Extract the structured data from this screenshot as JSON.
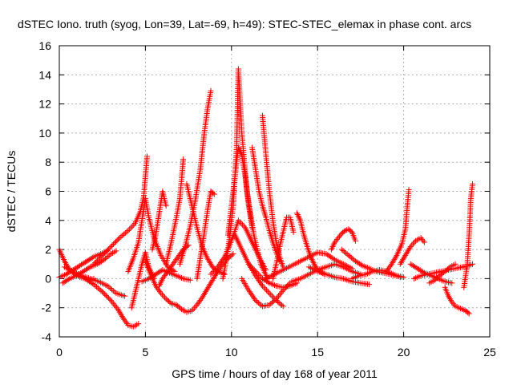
{
  "chart_data": {
    "type": "scatter",
    "title": "dSTEC Iono. truth (syog, Lon=39, Lat=-69, h=49): STEC-STEC_elemax in phase cont. arcs",
    "xlabel": "GPS time / hours of day 168 of year 2011",
    "ylabel": "dSTEC  / TECUs",
    "xlim": [
      0,
      25
    ],
    "ylim": [
      -4,
      16
    ],
    "xticks": [
      "0",
      "5",
      "10",
      "15",
      "20",
      "25"
    ],
    "yticks": [
      "-4",
      "-2",
      "0",
      "2",
      "4",
      "6",
      "8",
      "10",
      "12",
      "14",
      "16"
    ],
    "grid": true,
    "marker": "+",
    "color": "#ff0000",
    "series": [
      {
        "x": [
          0.0,
          0.3,
          0.6,
          0.9,
          1.2,
          1.5,
          1.8,
          2.0
        ],
        "y": [
          2.0,
          1.2,
          0.6,
          0.3,
          0.1,
          0.0,
          -0.1,
          0.0
        ]
      },
      {
        "x": [
          0.0,
          0.4,
          0.8,
          1.2,
          1.6,
          2.0,
          2.4,
          2.8
        ],
        "y": [
          0.1,
          0.3,
          0.6,
          0.9,
          1.2,
          1.5,
          1.7,
          1.9
        ]
      },
      {
        "x": [
          0.2,
          0.6,
          1.0,
          1.4,
          1.8,
          2.2,
          2.6,
          3.0,
          3.3
        ],
        "y": [
          -0.3,
          0.0,
          0.2,
          0.5,
          0.8,
          1.0,
          1.3,
          1.7,
          1.9
        ]
      },
      {
        "x": [
          0.3,
          0.8,
          1.3,
          1.8,
          2.3,
          2.8,
          3.3,
          3.8
        ],
        "y": [
          0.8,
          0.5,
          0.2,
          0.0,
          -0.2,
          -0.5,
          -1.0,
          -1.2
        ]
      },
      {
        "x": [
          1.5,
          2.0,
          2.5,
          3.0,
          3.4,
          3.7,
          4.0,
          4.3,
          4.6
        ],
        "y": [
          0.0,
          -0.4,
          -0.9,
          -1.5,
          -2.1,
          -2.7,
          -3.2,
          -3.3,
          -3.1
        ]
      },
      {
        "x": [
          2.0,
          2.5,
          3.0,
          3.5,
          4.0,
          4.4,
          4.7,
          4.9,
          5.0,
          5.1
        ],
        "y": [
          1.0,
          1.6,
          2.2,
          2.8,
          3.3,
          3.8,
          4.6,
          5.6,
          7.0,
          8.4
        ]
      },
      {
        "x": [
          4.0,
          4.3,
          4.6,
          4.8,
          5.0,
          5.2,
          5.5,
          5.9,
          6.3,
          6.7
        ],
        "y": [
          0.5,
          1.4,
          2.5,
          4.0,
          5.5,
          4.2,
          2.8,
          1.6,
          0.8,
          0.5
        ]
      },
      {
        "x": [
          4.2,
          4.4,
          4.6,
          4.8,
          5.0,
          5.2,
          5.5
        ],
        "y": [
          -2.0,
          -1.0,
          0.0,
          1.0,
          1.8,
          0.8,
          0.0
        ]
      },
      {
        "x": [
          4.8,
          5.2,
          5.6,
          6.0,
          6.4,
          6.8,
          7.2,
          7.6
        ],
        "y": [
          -0.2,
          0.0,
          0.3,
          0.6,
          0.4,
          0.2,
          0.0,
          -0.1
        ]
      },
      {
        "x": [
          5.4,
          5.6,
          5.8,
          6.0,
          6.2
        ],
        "y": [
          2.0,
          3.0,
          4.5,
          6.0,
          5.0
        ]
      },
      {
        "x": [
          5.0,
          5.3,
          5.6,
          5.9,
          6.2,
          6.5,
          6.8
        ],
        "y": [
          1.2,
          0.3,
          -0.5,
          -1.0,
          -1.4,
          -1.7,
          -1.8
        ]
      },
      {
        "x": [
          5.8,
          6.0,
          6.3,
          6.6,
          6.9,
          7.2,
          7.5
        ],
        "y": [
          -0.5,
          0.0,
          0.5,
          1.0,
          1.5,
          2.0,
          2.3
        ]
      },
      {
        "x": [
          6.2,
          6.5,
          6.8,
          7.0,
          7.1,
          7.2
        ],
        "y": [
          1.0,
          2.5,
          4.2,
          5.5,
          6.8,
          8.2
        ]
      },
      {
        "x": [
          6.8,
          7.1,
          7.4,
          7.7,
          8.0,
          8.3,
          8.6,
          8.9,
          9.2,
          9.5,
          9.8,
          10.1
        ],
        "y": [
          -1.8,
          -2.1,
          -2.3,
          -2.2,
          -1.8,
          -1.3,
          -0.7,
          -0.1,
          0.5,
          1.0,
          1.4,
          1.7
        ]
      },
      {
        "x": [
          7.0,
          7.3,
          7.6,
          7.9,
          8.2,
          8.4,
          8.6,
          8.8
        ],
        "y": [
          1.0,
          2.2,
          3.6,
          5.4,
          7.6,
          9.8,
          11.6,
          12.9
        ]
      },
      {
        "x": [
          7.4,
          7.7,
          8.0,
          8.3,
          8.6,
          8.9,
          9.2,
          9.6
        ],
        "y": [
          6.5,
          5.0,
          3.5,
          2.2,
          1.4,
          0.8,
          0.5,
          0.3
        ]
      },
      {
        "x": [
          8.0,
          8.2,
          8.4,
          8.6,
          8.8,
          9.0
        ],
        "y": [
          0.0,
          1.5,
          3.0,
          4.6,
          6.0,
          5.8
        ]
      },
      {
        "x": [
          8.8,
          9.2,
          9.6,
          10.0,
          10.4,
          10.8,
          11.2,
          11.6,
          12.0
        ],
        "y": [
          0.3,
          0.8,
          1.5,
          2.6,
          4.0,
          3.5,
          2.5,
          1.5,
          0.6
        ]
      },
      {
        "x": [
          9.5,
          9.8,
          10.1,
          10.3,
          10.4,
          10.6,
          10.9,
          11.3,
          11.7,
          12.1
        ],
        "y": [
          0.0,
          2.0,
          5.0,
          9.0,
          14.4,
          10.0,
          6.0,
          3.0,
          1.0,
          0.0
        ]
      },
      {
        "x": [
          9.8,
          10.0,
          10.2,
          10.4,
          10.6,
          10.8,
          11.0,
          11.2
        ],
        "y": [
          3.0,
          5.0,
          7.0,
          9.0,
          8.5,
          7.0,
          5.0,
          3.5
        ]
      },
      {
        "x": [
          10.2,
          10.6,
          11.0,
          11.4,
          11.8,
          12.2,
          12.6,
          13.0
        ],
        "y": [
          3.0,
          2.0,
          1.0,
          0.2,
          -0.5,
          -1.0,
          -1.5,
          -1.9
        ]
      },
      {
        "x": [
          10.6,
          11.0,
          11.4,
          11.8,
          12.2,
          12.6,
          13.0,
          13.4
        ],
        "y": [
          0.0,
          -0.8,
          -1.5,
          -1.9,
          -1.8,
          -1.4,
          -0.8,
          -0.3
        ]
      },
      {
        "x": [
          11.0,
          11.4,
          11.8,
          12.2,
          12.6,
          13.0,
          13.4,
          13.8
        ],
        "y": [
          1.0,
          0.5,
          0.0,
          -0.3,
          -0.5,
          -0.6,
          -0.5,
          -0.3
        ]
      },
      {
        "x": [
          11.2,
          11.4,
          11.6,
          11.8,
          12.0,
          12.2,
          12.4,
          12.6,
          12.8
        ],
        "y": [
          9.0,
          7.5,
          6.0,
          5.0,
          4.2,
          3.3,
          2.5,
          1.8,
          1.2
        ]
      },
      {
        "x": [
          11.8,
          12.0,
          12.2,
          12.4,
          12.6,
          12.8,
          13.0
        ],
        "y": [
          11.2,
          8.5,
          6.0,
          4.0,
          2.5,
          1.5,
          0.8
        ]
      },
      {
        "x": [
          12.4,
          12.6,
          12.8,
          13.0,
          13.2,
          13.4,
          13.6
        ],
        "y": [
          0.0,
          1.0,
          2.2,
          3.2,
          4.2,
          4.2,
          3.2
        ]
      },
      {
        "x": [
          12.0,
          12.5,
          13.0,
          13.5,
          14.0,
          14.5,
          15.0,
          15.5,
          16.0,
          16.5,
          17.0
        ],
        "y": [
          0.0,
          0.3,
          0.6,
          0.9,
          1.2,
          1.5,
          1.8,
          1.7,
          1.3,
          1.0,
          0.7
        ]
      },
      {
        "x": [
          13.8,
          14.0,
          14.2,
          14.4,
          14.6,
          14.8,
          15.0,
          15.4
        ],
        "y": [
          4.5,
          4.0,
          3.0,
          2.2,
          1.5,
          1.0,
          0.6,
          0.3
        ]
      },
      {
        "x": [
          13.5,
          14.0,
          14.5,
          15.0,
          15.5,
          16.0,
          16.5,
          17.0,
          17.5
        ],
        "y": [
          -0.2,
          0.0,
          0.3,
          0.6,
          0.8,
          1.0,
          0.8,
          0.5,
          0.3
        ]
      },
      {
        "x": [
          14.5,
          15.0,
          15.5,
          16.0,
          16.5,
          17.0,
          17.5,
          18.0
        ],
        "y": [
          0.8,
          0.5,
          0.3,
          0.1,
          0.0,
          -0.2,
          -0.3,
          -0.4
        ]
      },
      {
        "x": [
          15.8,
          16.0,
          16.2,
          16.4,
          16.6,
          16.8,
          17.0,
          17.2
        ],
        "y": [
          2.0,
          2.5,
          2.8,
          3.1,
          3.3,
          3.4,
          3.2,
          2.6
        ]
      },
      {
        "x": [
          16.4,
          16.8,
          17.2,
          17.6,
          18.0,
          18.4,
          18.8,
          19.2,
          19.6,
          20.0
        ],
        "y": [
          2.0,
          1.6,
          1.2,
          0.9,
          0.7,
          0.5,
          0.4,
          0.3,
          0.2,
          0.1
        ]
      },
      {
        "x": [
          17.0,
          17.4,
          17.8,
          18.2,
          18.6,
          19.0,
          19.4,
          19.8
        ],
        "y": [
          0.0,
          0.2,
          0.3,
          0.5,
          0.6,
          0.5,
          0.3,
          0.1
        ]
      },
      {
        "x": [
          19.0,
          19.3,
          19.6,
          19.9,
          20.1,
          20.2,
          20.3
        ],
        "y": [
          0.5,
          1.0,
          1.6,
          2.4,
          3.4,
          4.8,
          6.1
        ]
      },
      {
        "x": [
          19.8,
          20.1,
          20.4,
          20.7,
          21.0,
          21.2
        ],
        "y": [
          1.0,
          1.6,
          2.2,
          2.6,
          2.8,
          2.5
        ]
      },
      {
        "x": [
          20.4,
          20.8,
          21.2,
          21.6,
          22.0,
          22.4,
          22.8
        ],
        "y": [
          1.0,
          0.7,
          0.4,
          0.2,
          0.0,
          -0.2,
          -0.3
        ]
      },
      {
        "x": [
          20.6,
          21.0,
          21.4,
          21.8,
          22.2,
          22.6,
          23.0,
          23.4,
          23.8,
          24.0
        ],
        "y": [
          0.0,
          0.2,
          0.3,
          0.4,
          0.5,
          0.6,
          0.7,
          0.8,
          0.9,
          1.0
        ]
      },
      {
        "x": [
          21.5,
          21.8,
          22.1,
          22.4,
          22.7,
          23.0
        ],
        "y": [
          -0.3,
          -0.1,
          0.2,
          0.5,
          0.8,
          1.0
        ]
      },
      {
        "x": [
          22.4,
          22.6,
          22.8,
          23.0,
          23.2,
          23.4,
          23.6,
          23.8
        ],
        "y": [
          -0.6,
          -1.2,
          -1.6,
          -1.9,
          -2.0,
          -2.1,
          -2.2,
          -2.4
        ]
      },
      {
        "x": [
          23.5,
          23.7,
          23.8,
          23.9,
          24.0
        ],
        "y": [
          -0.6,
          1.0,
          3.0,
          5.5,
          6.5
        ]
      }
    ]
  }
}
